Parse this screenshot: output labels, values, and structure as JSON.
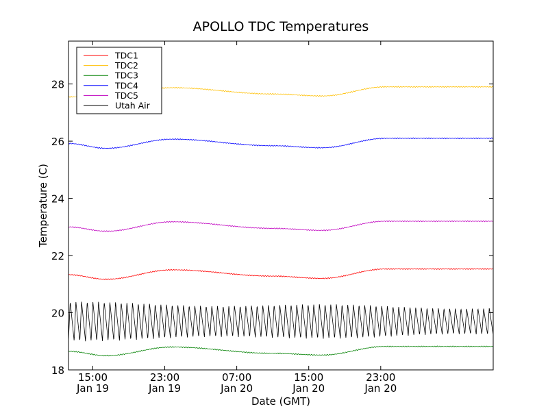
{
  "chart_data": {
    "type": "line",
    "title": "APOLLO TDC Temperatures",
    "xlabel": "Date (GMT)",
    "ylabel": "Temperature (C)",
    "ylim": [
      18,
      29.5
    ],
    "xlim": [
      12.3,
      59.5
    ],
    "x_units": "hours since Jan 19 00:00 GMT",
    "yticks": [
      18,
      20,
      22,
      24,
      26,
      28
    ],
    "ytick_labels": [
      "18",
      "20",
      "22",
      "24",
      "26",
      "28"
    ],
    "xticks": [
      {
        "x": 15,
        "time": "15:00",
        "date": "Jan 19"
      },
      {
        "x": 23,
        "time": "23:00",
        "date": "Jan 19"
      },
      {
        "x": 31,
        "time": "07:00",
        "date": "Jan 20"
      },
      {
        "x": 39,
        "time": "15:00",
        "date": "Jan 20"
      },
      {
        "x": 47,
        "time": "23:00",
        "date": "Jan 20"
      }
    ],
    "legend_position": "top-left",
    "series": [
      {
        "name": "TDC1",
        "color": "#ff0000",
        "x": [
          12.3,
          16.5,
          23.8,
          35,
          40.5,
          47.5
        ],
        "values": [
          21.33,
          21.17,
          21.5,
          21.28,
          21.2,
          21.53
        ]
      },
      {
        "name": "TDC2",
        "color": "#ffbf00",
        "x": [
          12.3,
          16.5,
          23.8,
          35,
          40.5,
          47.5
        ],
        "values": [
          27.55,
          27.55,
          27.87,
          27.65,
          27.58,
          27.9
        ]
      },
      {
        "name": "TDC3",
        "color": "#008000",
        "x": [
          12.3,
          16.5,
          23.8,
          35,
          40.5,
          47.5
        ],
        "values": [
          18.65,
          18.5,
          18.8,
          18.58,
          18.52,
          18.82
        ]
      },
      {
        "name": "TDC4",
        "color": "#0000ff",
        "x": [
          12.3,
          16.5,
          23.8,
          35,
          40.5,
          47.5
        ],
        "values": [
          25.92,
          25.75,
          26.07,
          25.84,
          25.77,
          26.1
        ]
      },
      {
        "name": "TDC5",
        "color": "#bf00bf",
        "x": [
          12.3,
          16.5,
          23.8,
          35,
          40.5,
          47.5
        ],
        "values": [
          23.0,
          22.85,
          23.18,
          22.95,
          22.88,
          23.2
        ]
      },
      {
        "name": "Utah Air",
        "color": "#000000",
        "oscillation": {
          "mean": 19.7,
          "amplitude_min": 0.45,
          "amplitude_max": 0.7,
          "cycles": 75
        }
      }
    ]
  }
}
